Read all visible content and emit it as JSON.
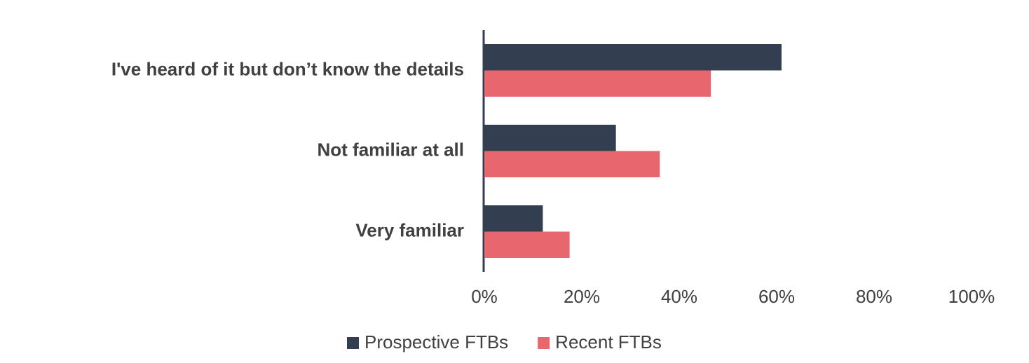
{
  "chart_data": {
    "type": "hbar",
    "categories": [
      "I've heard of it but don’t know the details",
      "Not familiar at all",
      "Very familiar"
    ],
    "series": [
      {
        "name": "Prospective FTBs",
        "color": "#333f50",
        "values": [
          61,
          27,
          12
        ]
      },
      {
        "name": "Recent FTBs",
        "color": "#e8676f",
        "values": [
          46.5,
          36,
          17.5
        ]
      }
    ],
    "xlim": [
      0,
      100
    ],
    "xticks": [
      {
        "value": 0,
        "label": "0%"
      },
      {
        "value": 20,
        "label": "20%"
      },
      {
        "value": 40,
        "label": "40%"
      },
      {
        "value": 60,
        "label": "60%"
      },
      {
        "value": 80,
        "label": "80%"
      },
      {
        "value": 100,
        "label": "100%"
      }
    ],
    "grid": false,
    "legend": "bottom"
  }
}
